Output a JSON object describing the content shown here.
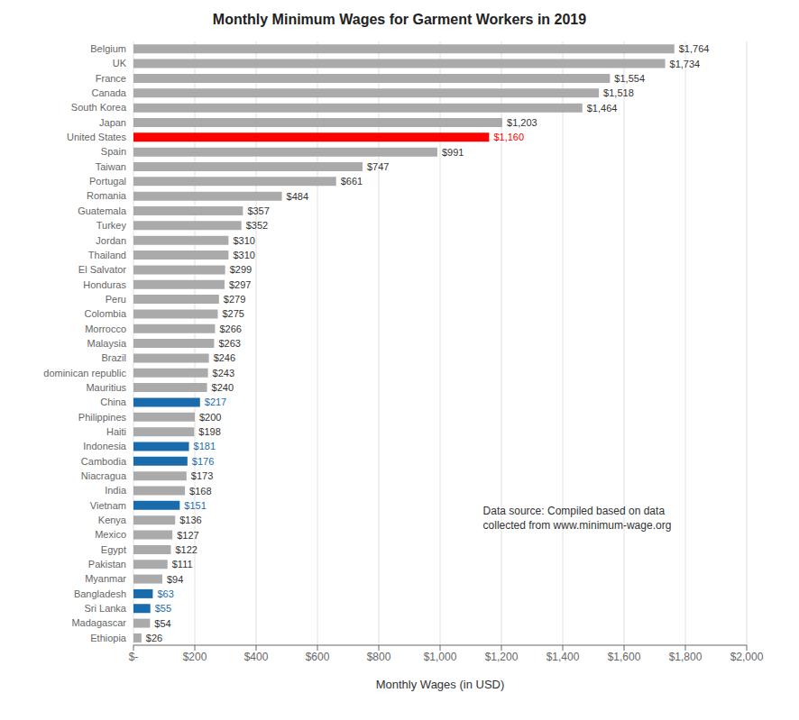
{
  "chart_data": {
    "type": "bar",
    "orientation": "horizontal",
    "title": "Monthly Minimum Wages for Garment Workers in 2019",
    "xlabel": "Monthly Wages (in USD)",
    "annotation": "Data source: Compiled based on data\ncollected from www.minimum-wage.org",
    "categories": [
      "Belgium",
      "UK",
      "France",
      "Canada",
      "South Korea",
      "Japan",
      "United States",
      "Spain",
      "Taiwan",
      "Portugal",
      "Romania",
      "Guatemala",
      "Turkey",
      "Jordan",
      "Thailand",
      "El Salvator",
      "Honduras",
      "Peru",
      "Colombia",
      "Morrocco",
      "Malaysia",
      "Brazil",
      "dominican republic",
      "Mauritius",
      "China",
      "Philippines",
      "Haiti",
      "Indonesia",
      "Cambodia",
      "Niacragua",
      "India",
      "Vietnam",
      "Kenya",
      "Mexico",
      "Egypt",
      "Pakistan",
      "Myanmar",
      "Bangladesh",
      "Sri Lanka",
      "Madagascar",
      "Ethiopia"
    ],
    "values": [
      1764,
      1734,
      1554,
      1518,
      1464,
      1203,
      1160,
      991,
      747,
      661,
      484,
      357,
      352,
      310,
      310,
      299,
      297,
      279,
      275,
      266,
      263,
      246,
      243,
      240,
      217,
      200,
      198,
      181,
      176,
      173,
      168,
      151,
      136,
      127,
      122,
      111,
      94,
      63,
      55,
      54,
      26
    ],
    "value_labels": [
      "$1,764",
      "$1,734",
      "$1,554",
      "$1,518",
      "$1,464",
      "$1,203",
      "$1,160",
      "$991",
      "$747",
      "$661",
      "$484",
      "$357",
      "$352",
      "$310",
      "$310",
      "$299",
      "$297",
      "$279",
      "$275",
      "$266",
      "$263",
      "$246",
      "$243",
      "$240",
      "$217",
      "$200",
      "$198",
      "$181",
      "$176",
      "$173",
      "$168",
      "$151",
      "$136",
      "$127",
      "$122",
      "$111",
      "$94",
      "$63",
      "$55",
      "$54",
      "$26"
    ],
    "data_labels": true,
    "colors": [
      "#aaaaaa",
      "#aaaaaa",
      "#aaaaaa",
      "#aaaaaa",
      "#aaaaaa",
      "#aaaaaa",
      "#ff0000",
      "#aaaaaa",
      "#aaaaaa",
      "#aaaaaa",
      "#aaaaaa",
      "#aaaaaa",
      "#aaaaaa",
      "#aaaaaa",
      "#aaaaaa",
      "#aaaaaa",
      "#aaaaaa",
      "#aaaaaa",
      "#aaaaaa",
      "#aaaaaa",
      "#aaaaaa",
      "#aaaaaa",
      "#aaaaaa",
      "#aaaaaa",
      "#1a6bab",
      "#aaaaaa",
      "#aaaaaa",
      "#1a6bab",
      "#1a6bab",
      "#aaaaaa",
      "#aaaaaa",
      "#1a6bab",
      "#aaaaaa",
      "#aaaaaa",
      "#aaaaaa",
      "#aaaaaa",
      "#aaaaaa",
      "#1a6bab",
      "#1a6bab",
      "#aaaaaa",
      "#aaaaaa"
    ],
    "xlim": [
      0,
      2000
    ],
    "xticks": [
      {
        "value": 0,
        "label": "$-"
      },
      {
        "value": 200,
        "label": "$200"
      },
      {
        "value": 400,
        "label": "$400"
      },
      {
        "value": 600,
        "label": "$600"
      },
      {
        "value": 800,
        "label": "$800"
      },
      {
        "value": 1000,
        "label": "$1,000"
      },
      {
        "value": 1200,
        "label": "$1,200"
      },
      {
        "value": 1400,
        "label": "$1,400"
      },
      {
        "value": 1600,
        "label": "$1,600"
      },
      {
        "value": 1800,
        "label": "$1,800"
      },
      {
        "value": 2000,
        "label": "$2,000"
      }
    ],
    "grid": true
  }
}
